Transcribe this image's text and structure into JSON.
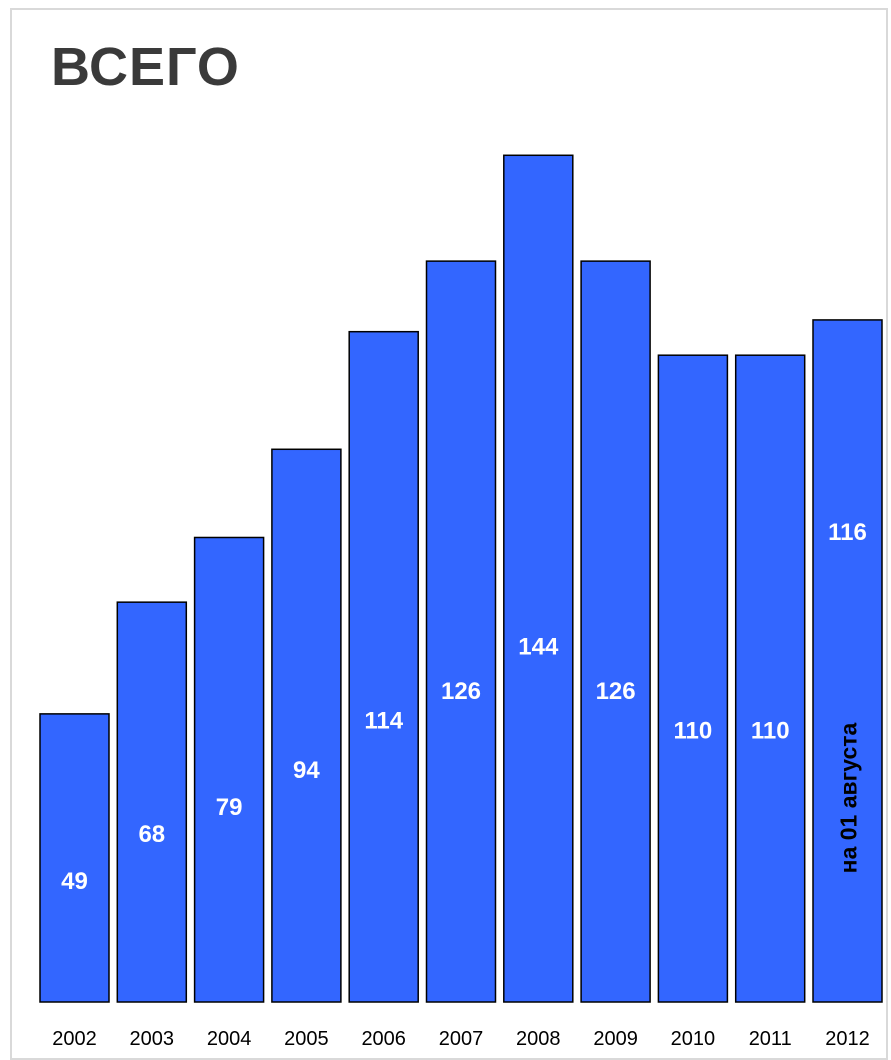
{
  "title": "ВСЕГО",
  "colors": {
    "bar": "#3366ff",
    "bar_stroke": "#000000",
    "value_label": "#ffffff",
    "note": "#000000",
    "tick": "#000000"
  },
  "chart_data": {
    "type": "bar",
    "title": "ВСЕГО",
    "xlabel": "",
    "ylabel": "",
    "categories": [
      "2002",
      "2003",
      "2004",
      "2005",
      "2006",
      "2007",
      "2008",
      "2009",
      "2010",
      "2011",
      "2012"
    ],
    "values": [
      49,
      68,
      79,
      94,
      114,
      126,
      144,
      126,
      110,
      110,
      116
    ],
    "value_labels": [
      "49",
      "68",
      "79",
      "94",
      "114",
      "126",
      "144",
      "126",
      "110",
      "110",
      "116"
    ],
    "ylim": [
      0,
      150
    ],
    "grid": false,
    "legend": "none",
    "annotations": [
      {
        "category": "2012",
        "text": "на 01 августа"
      }
    ]
  }
}
